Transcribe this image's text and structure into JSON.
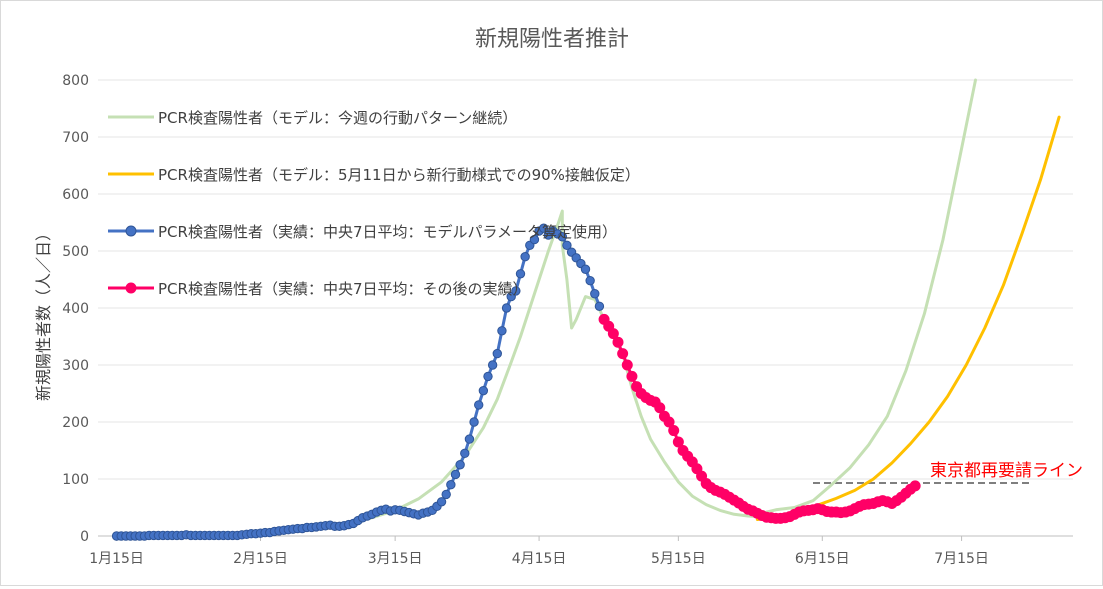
{
  "chart_data": {
    "type": "line",
    "title": "新規陽性者推計",
    "xlabel": "",
    "ylabel": "新規陽性者数（人／日）",
    "ylim": [
      0,
      800
    ],
    "yticks": [
      "0",
      "100",
      "200",
      "300",
      "400",
      "500",
      "600",
      "700",
      "800"
    ],
    "x_ticks": [
      {
        "date": "2020-01-15",
        "label": "1月15日"
      },
      {
        "date": "2020-02-15",
        "label": "2月15日"
      },
      {
        "date": "2020-03-15",
        "label": "3月15日"
      },
      {
        "date": "2020-04-15",
        "label": "4月15日"
      },
      {
        "date": "2020-05-15",
        "label": "5月15日"
      },
      {
        "date": "2020-06-15",
        "label": "6月15日"
      },
      {
        "date": "2020-07-15",
        "label": "7月15日"
      }
    ],
    "xlim": [
      "2020-01-11",
      "2020-08-08"
    ],
    "grid": "horizontal",
    "legend_position": "upper-left",
    "series": [
      {
        "name": "PCR検査陽性者（モデル：今週の行動パターン継続）",
        "color": "#c5e0b4",
        "marker": "none",
        "points": [
          [
            "2020-01-15",
            0
          ],
          [
            "2020-01-25",
            1
          ],
          [
            "2020-02-05",
            3
          ],
          [
            "2020-02-15",
            6
          ],
          [
            "2020-02-25",
            12
          ],
          [
            "2020-03-05",
            22
          ],
          [
            "2020-03-10",
            32
          ],
          [
            "2020-03-15",
            45
          ],
          [
            "2020-03-20",
            65
          ],
          [
            "2020-03-25",
            95
          ],
          [
            "2020-03-30",
            140
          ],
          [
            "2020-04-03",
            190
          ],
          [
            "2020-04-06",
            240
          ],
          [
            "2020-04-09",
            305
          ],
          [
            "2020-04-11",
            350
          ],
          [
            "2020-04-13",
            400
          ],
          [
            "2020-04-15",
            450
          ],
          [
            "2020-04-17",
            500
          ],
          [
            "2020-04-19",
            545
          ],
          [
            "2020-04-20",
            570
          ],
          [
            "2020-04-20",
            510
          ],
          [
            "2020-04-21",
            450
          ],
          [
            "2020-04-22",
            365
          ],
          [
            "2020-04-23",
            380
          ],
          [
            "2020-04-25",
            420
          ],
          [
            "2020-04-27",
            415
          ],
          [
            "2020-04-29",
            380
          ],
          [
            "2020-05-01",
            350
          ],
          [
            "2020-05-03",
            320
          ],
          [
            "2020-05-05",
            260
          ],
          [
            "2020-05-07",
            210
          ],
          [
            "2020-05-09",
            170
          ],
          [
            "2020-05-12",
            130
          ],
          [
            "2020-05-15",
            95
          ],
          [
            "2020-05-18",
            70
          ],
          [
            "2020-05-21",
            55
          ],
          [
            "2020-05-24",
            45
          ],
          [
            "2020-05-27",
            38
          ],
          [
            "2020-05-30",
            35
          ],
          [
            "2020-06-01",
            34
          ],
          [
            "2020-06-03",
            42
          ],
          [
            "2020-06-05",
            46
          ],
          [
            "2020-06-09",
            50
          ],
          [
            "2020-06-13",
            62
          ],
          [
            "2020-06-17",
            90
          ],
          [
            "2020-06-21",
            120
          ],
          [
            "2020-06-25",
            160
          ],
          [
            "2020-06-29",
            210
          ],
          [
            "2020-07-03",
            290
          ],
          [
            "2020-07-07",
            390
          ],
          [
            "2020-07-11",
            520
          ],
          [
            "2020-07-15",
            680
          ],
          [
            "2020-07-18",
            800
          ]
        ]
      },
      {
        "name": "PCR検査陽性者（モデル：5月11日から新行動様式での90%接触仮定）",
        "color": "#ffc000",
        "marker": "none",
        "points": [
          [
            "2020-06-01",
            29
          ],
          [
            "2020-06-04",
            32
          ],
          [
            "2020-06-07",
            36
          ],
          [
            "2020-06-10",
            44
          ],
          [
            "2020-06-14",
            54
          ],
          [
            "2020-06-18",
            66
          ],
          [
            "2020-06-22",
            80
          ],
          [
            "2020-06-26",
            100
          ],
          [
            "2020-06-30",
            128
          ],
          [
            "2020-07-04",
            162
          ],
          [
            "2020-07-08",
            200
          ],
          [
            "2020-07-12",
            245
          ],
          [
            "2020-07-16",
            300
          ],
          [
            "2020-07-20",
            365
          ],
          [
            "2020-07-24",
            440
          ],
          [
            "2020-07-28",
            530
          ],
          [
            "2020-08-01",
            625
          ],
          [
            "2020-08-05",
            735
          ]
        ]
      },
      {
        "name": "PCR検査陽性者（実績：中央7日平均：モデルパラメータ算定使用）",
        "color": "#4472c4",
        "marker": "circle",
        "points": [
          [
            "2020-01-15",
            0
          ],
          [
            "2020-01-16",
            0
          ],
          [
            "2020-01-17",
            0
          ],
          [
            "2020-01-18",
            0
          ],
          [
            "2020-01-19",
            0
          ],
          [
            "2020-01-20",
            0
          ],
          [
            "2020-01-21",
            0
          ],
          [
            "2020-01-22",
            1
          ],
          [
            "2020-01-23",
            1
          ],
          [
            "2020-01-24",
            1
          ],
          [
            "2020-01-25",
            1
          ],
          [
            "2020-01-26",
            1
          ],
          [
            "2020-01-27",
            1
          ],
          [
            "2020-01-28",
            1
          ],
          [
            "2020-01-29",
            1
          ],
          [
            "2020-01-30",
            2
          ],
          [
            "2020-01-31",
            1
          ],
          [
            "2020-02-01",
            1
          ],
          [
            "2020-02-02",
            1
          ],
          [
            "2020-02-03",
            1
          ],
          [
            "2020-02-04",
            1
          ],
          [
            "2020-02-05",
            1
          ],
          [
            "2020-02-06",
            1
          ],
          [
            "2020-02-07",
            1
          ],
          [
            "2020-02-08",
            1
          ],
          [
            "2020-02-09",
            1
          ],
          [
            "2020-02-10",
            1
          ],
          [
            "2020-02-11",
            2
          ],
          [
            "2020-02-12",
            3
          ],
          [
            "2020-02-13",
            4
          ],
          [
            "2020-02-14",
            4
          ],
          [
            "2020-02-15",
            5
          ],
          [
            "2020-02-16",
            6
          ],
          [
            "2020-02-17",
            6
          ],
          [
            "2020-02-18",
            8
          ],
          [
            "2020-02-19",
            9
          ],
          [
            "2020-02-20",
            10
          ],
          [
            "2020-02-21",
            11
          ],
          [
            "2020-02-22",
            12
          ],
          [
            "2020-02-23",
            13
          ],
          [
            "2020-02-24",
            13
          ],
          [
            "2020-02-25",
            15
          ],
          [
            "2020-02-26",
            15
          ],
          [
            "2020-02-27",
            16
          ],
          [
            "2020-02-28",
            17
          ],
          [
            "2020-02-29",
            18
          ],
          [
            "2020-03-01",
            19
          ],
          [
            "2020-03-02",
            17
          ],
          [
            "2020-03-03",
            17
          ],
          [
            "2020-03-04",
            18
          ],
          [
            "2020-03-05",
            20
          ],
          [
            "2020-03-06",
            22
          ],
          [
            "2020-03-07",
            27
          ],
          [
            "2020-03-08",
            32
          ],
          [
            "2020-03-09",
            35
          ],
          [
            "2020-03-10",
            38
          ],
          [
            "2020-03-11",
            42
          ],
          [
            "2020-03-12",
            45
          ],
          [
            "2020-03-13",
            47
          ],
          [
            "2020-03-14",
            44
          ],
          [
            "2020-03-15",
            46
          ],
          [
            "2020-03-16",
            45
          ],
          [
            "2020-03-17",
            43
          ],
          [
            "2020-03-18",
            41
          ],
          [
            "2020-03-19",
            39
          ],
          [
            "2020-03-20",
            37
          ],
          [
            "2020-03-21",
            40
          ],
          [
            "2020-03-22",
            42
          ],
          [
            "2020-03-23",
            45
          ],
          [
            "2020-03-24",
            52
          ],
          [
            "2020-03-25",
            60
          ],
          [
            "2020-03-26",
            73
          ],
          [
            "2020-03-27",
            90
          ],
          [
            "2020-03-28",
            108
          ],
          [
            "2020-03-29",
            125
          ],
          [
            "2020-03-30",
            145
          ],
          [
            "2020-03-31",
            170
          ],
          [
            "2020-04-01",
            200
          ],
          [
            "2020-04-02",
            230
          ],
          [
            "2020-04-03",
            255
          ],
          [
            "2020-04-04",
            280
          ],
          [
            "2020-04-05",
            300
          ],
          [
            "2020-04-06",
            320
          ],
          [
            "2020-04-07",
            360
          ],
          [
            "2020-04-08",
            400
          ],
          [
            "2020-04-09",
            420
          ],
          [
            "2020-04-10",
            430
          ],
          [
            "2020-04-11",
            460
          ],
          [
            "2020-04-12",
            490
          ],
          [
            "2020-04-13",
            510
          ],
          [
            "2020-04-14",
            520
          ],
          [
            "2020-04-15",
            535
          ],
          [
            "2020-04-16",
            540
          ],
          [
            "2020-04-17",
            528
          ],
          [
            "2020-04-18",
            535
          ],
          [
            "2020-04-19",
            530
          ],
          [
            "2020-04-20",
            525
          ],
          [
            "2020-04-21",
            510
          ],
          [
            "2020-04-22",
            498
          ],
          [
            "2020-04-23",
            488
          ],
          [
            "2020-04-24",
            478
          ],
          [
            "2020-04-25",
            468
          ],
          [
            "2020-04-26",
            448
          ],
          [
            "2020-04-27",
            425
          ],
          [
            "2020-04-28",
            403
          ]
        ]
      },
      {
        "name": "PCR検査陽性者（実績：中央7日平均：その後の実績）",
        "color": "#ff0066",
        "marker": "circle",
        "points": [
          [
            "2020-04-29",
            380
          ],
          [
            "2020-04-30",
            368
          ],
          [
            "2020-05-01",
            355
          ],
          [
            "2020-05-02",
            340
          ],
          [
            "2020-05-03",
            320
          ],
          [
            "2020-05-04",
            300
          ],
          [
            "2020-05-05",
            280
          ],
          [
            "2020-05-06",
            262
          ],
          [
            "2020-05-07",
            250
          ],
          [
            "2020-05-08",
            243
          ],
          [
            "2020-05-09",
            238
          ],
          [
            "2020-05-10",
            235
          ],
          [
            "2020-05-11",
            225
          ],
          [
            "2020-05-12",
            210
          ],
          [
            "2020-05-13",
            200
          ],
          [
            "2020-05-14",
            185
          ],
          [
            "2020-05-15",
            165
          ],
          [
            "2020-05-16",
            150
          ],
          [
            "2020-05-17",
            140
          ],
          [
            "2020-05-18",
            130
          ],
          [
            "2020-05-19",
            118
          ],
          [
            "2020-05-20",
            105
          ],
          [
            "2020-05-21",
            92
          ],
          [
            "2020-05-22",
            85
          ],
          [
            "2020-05-23",
            80
          ],
          [
            "2020-05-24",
            77
          ],
          [
            "2020-05-25",
            73
          ],
          [
            "2020-05-26",
            68
          ],
          [
            "2020-05-27",
            63
          ],
          [
            "2020-05-28",
            58
          ],
          [
            "2020-05-29",
            52
          ],
          [
            "2020-05-30",
            47
          ],
          [
            "2020-05-31",
            44
          ],
          [
            "2020-06-01",
            40
          ],
          [
            "2020-06-02",
            36
          ],
          [
            "2020-06-03",
            33
          ],
          [
            "2020-06-04",
            32
          ],
          [
            "2020-06-05",
            31
          ],
          [
            "2020-06-06",
            31
          ],
          [
            "2020-06-07",
            32
          ],
          [
            "2020-06-08",
            34
          ],
          [
            "2020-06-09",
            38
          ],
          [
            "2020-06-10",
            42
          ],
          [
            "2020-06-11",
            44
          ],
          [
            "2020-06-12",
            45
          ],
          [
            "2020-06-13",
            46
          ],
          [
            "2020-06-14",
            48
          ],
          [
            "2020-06-15",
            46
          ],
          [
            "2020-06-16",
            43
          ],
          [
            "2020-06-17",
            42
          ],
          [
            "2020-06-18",
            42
          ],
          [
            "2020-06-19",
            41
          ],
          [
            "2020-06-20",
            42
          ],
          [
            "2020-06-21",
            44
          ],
          [
            "2020-06-22",
            48
          ],
          [
            "2020-06-23",
            52
          ],
          [
            "2020-06-24",
            55
          ],
          [
            "2020-06-25",
            56
          ],
          [
            "2020-06-26",
            57
          ],
          [
            "2020-06-27",
            60
          ],
          [
            "2020-06-28",
            62
          ],
          [
            "2020-06-29",
            60
          ],
          [
            "2020-06-30",
            57
          ],
          [
            "2020-07-01",
            62
          ],
          [
            "2020-07-02",
            68
          ],
          [
            "2020-07-03",
            75
          ],
          [
            "2020-07-04",
            82
          ],
          [
            "2020-07-05",
            88
          ]
        ]
      }
    ],
    "annotation": {
      "label": "東京都再要請ライン",
      "value": 93,
      "color": "#ff0000",
      "line_color": "#7f7f7f",
      "x_start": "2020-06-13",
      "x_end": "2020-07-30"
    }
  }
}
